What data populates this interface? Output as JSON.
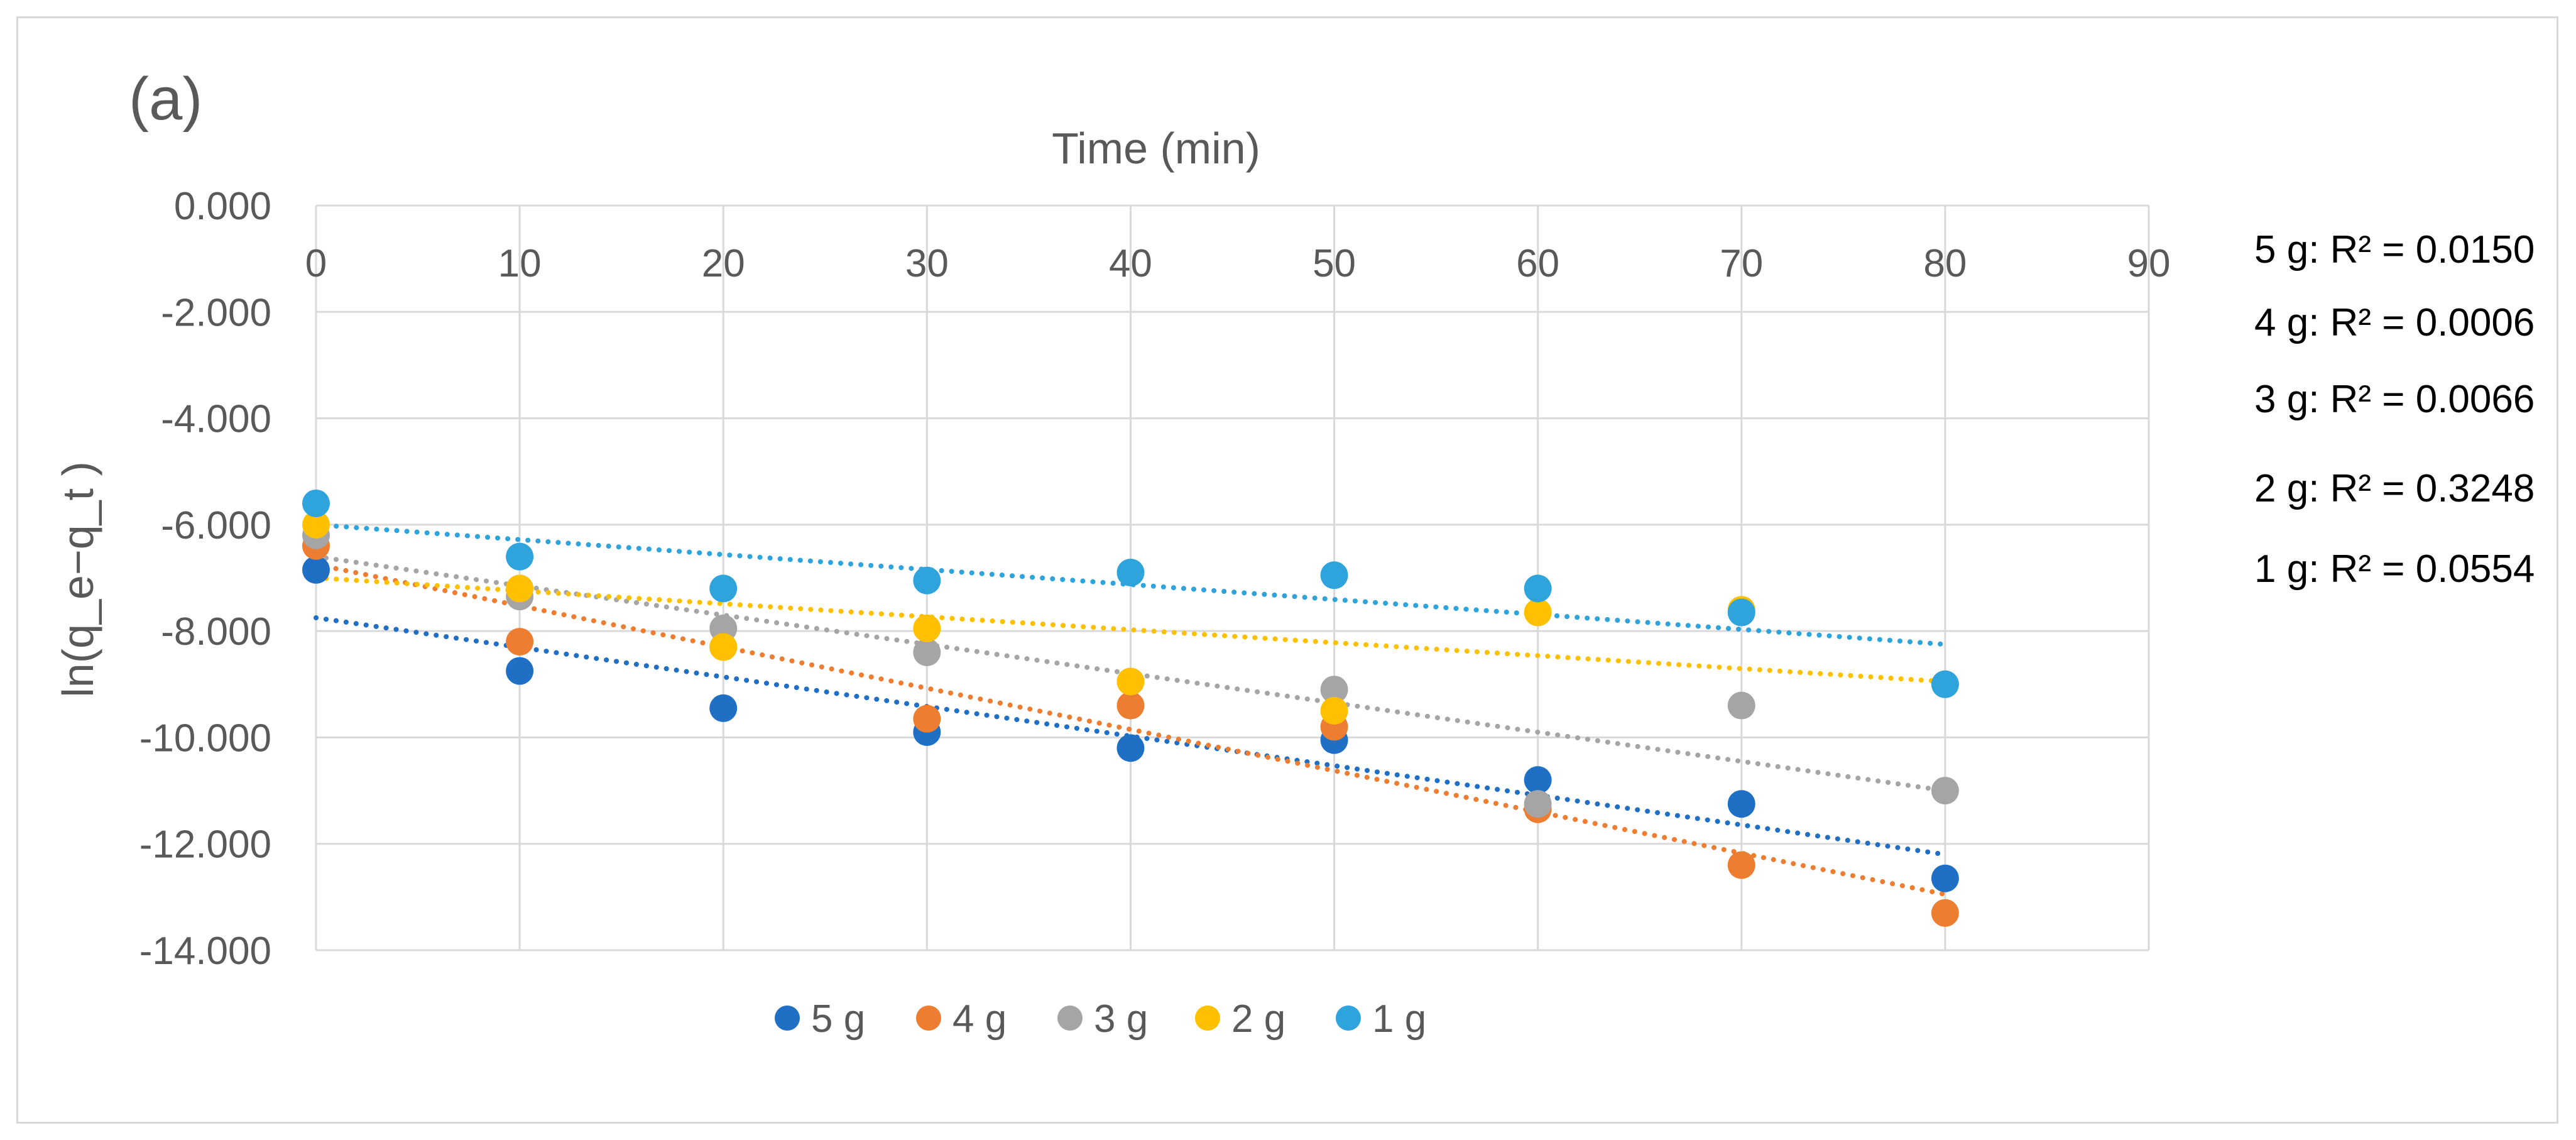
{
  "chart_data": {
    "type": "scatter",
    "panel_label": "(a)",
    "xlabel": "Time (min)",
    "ylabel": "ln(q_e−q_t )",
    "xlim": [
      0,
      90
    ],
    "ylim": [
      -14,
      0
    ],
    "x_ticks": [
      0,
      10,
      20,
      30,
      40,
      50,
      60,
      70,
      80,
      90
    ],
    "x_tick_labels": [
      "0",
      "10",
      "20",
      "30",
      "40",
      "50",
      "60",
      "70",
      "80",
      "90"
    ],
    "y_ticks": [
      0,
      -2,
      -4,
      -6,
      -8,
      -10,
      -12,
      -14
    ],
    "y_tick_labels": [
      "0.000",
      "-2.000",
      "-4.000",
      "-6.000",
      "-8.000",
      "-10.000",
      "-12.000",
      "-14.000"
    ],
    "x_axis_position": "top",
    "grid": true,
    "legend_position": "bottom",
    "x": [
      0,
      10,
      20,
      30,
      40,
      50,
      60,
      70,
      80
    ],
    "series": [
      {
        "name": "5 g",
        "color": "#1f6fc5",
        "values": [
          -6.85,
          -8.75,
          -9.45,
          -9.9,
          -10.2,
          -10.05,
          -10.8,
          -11.25,
          -12.65
        ],
        "trendline": [
          -7.75,
          -12.2
        ],
        "r2_label": "5 g: R² = 0.0150"
      },
      {
        "name": "4 g",
        "color": "#ed7d31",
        "values": [
          -6.4,
          -8.2,
          -8.3,
          -9.65,
          -9.4,
          -9.8,
          -11.35,
          -12.4,
          -13.3
        ],
        "trendline": [
          -6.75,
          -12.95
        ],
        "r2_label": "4 g: R² = 0.0006"
      },
      {
        "name": "3 g",
        "color": "#a5a5a5",
        "values": [
          -6.2,
          -7.35,
          -7.95,
          -8.4,
          -8.95,
          -9.1,
          -11.25,
          -9.4,
          -11.0
        ],
        "trendline": [
          -6.6,
          -11.0
        ],
        "r2_label": "3 g: R² = 0.0066"
      },
      {
        "name": "2 g",
        "color": "#ffc000",
        "values": [
          -6.0,
          -7.2,
          -8.3,
          -7.95,
          -8.95,
          -9.5,
          -7.65,
          -7.6,
          -9.0
        ],
        "trendline": [
          -7.0,
          -8.95
        ],
        "r2_label": "2 g: R² = 0.3248"
      },
      {
        "name": "1 g",
        "color": "#2ea3dc",
        "values": [
          -5.6,
          -6.6,
          -7.2,
          -7.05,
          -6.9,
          -6.95,
          -7.2,
          -7.65,
          -9.0
        ],
        "trendline": [
          -6.0,
          -8.25
        ],
        "r2_label": "1 g: R² = 0.0554"
      }
    ]
  }
}
